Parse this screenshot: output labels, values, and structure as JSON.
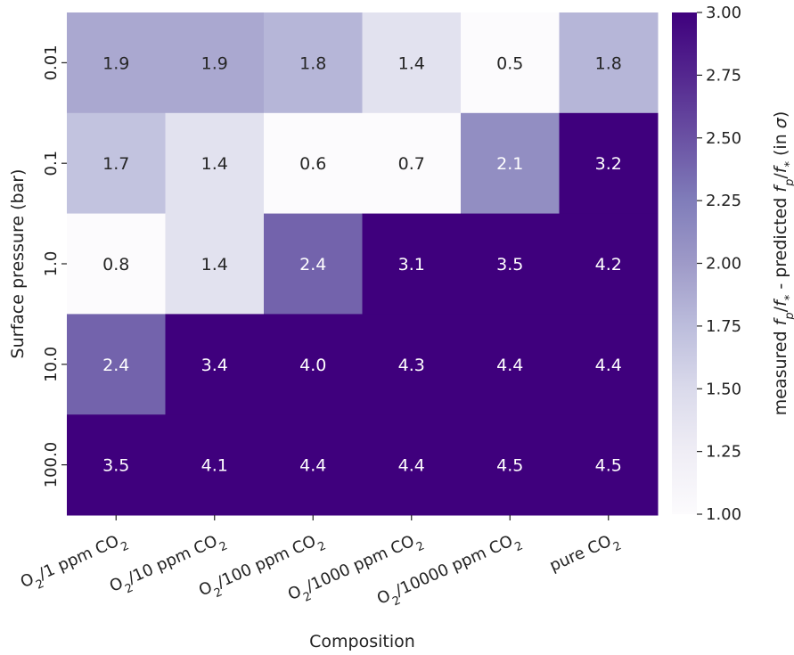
{
  "chart_data": {
    "type": "heatmap",
    "xlabel": "Composition",
    "ylabel": "Surface pressure (bar)",
    "x_categories": [
      "O2/1 ppm CO2",
      "O2/10 ppm CO2",
      "O2/100 ppm CO2",
      "O2/1000 ppm CO2",
      "O2/10000 ppm CO2",
      "pure CO2"
    ],
    "y_categories": [
      "0.01",
      "0.1",
      "1.0",
      "10.0",
      "100.0"
    ],
    "values": [
      [
        1.9,
        1.9,
        1.8,
        1.4,
        0.5,
        1.8
      ],
      [
        1.7,
        1.4,
        0.6,
        0.7,
        2.1,
        3.2
      ],
      [
        0.8,
        1.4,
        2.4,
        3.1,
        3.5,
        4.2
      ],
      [
        2.4,
        3.4,
        4.0,
        4.3,
        4.4,
        4.4
      ],
      [
        3.5,
        4.1,
        4.4,
        4.4,
        4.5,
        4.5
      ]
    ],
    "colorbar": {
      "label": "measured f_p/f_* - predicted f_p/f_* (in σ)",
      "range": [
        1.0,
        3.0
      ],
      "ticks": [
        "1.00",
        "1.25",
        "1.50",
        "1.75",
        "2.00",
        "2.25",
        "2.50",
        "2.75",
        "3.00"
      ],
      "colormap": "Purples",
      "low_color": "#fcfbfd",
      "high_color": "#3f007d"
    },
    "grid": false
  }
}
